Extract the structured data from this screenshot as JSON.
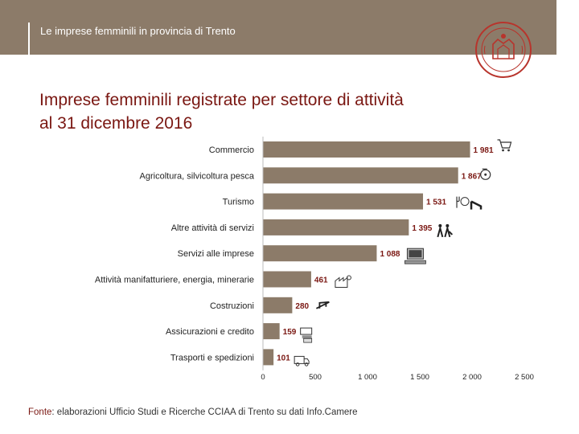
{
  "header": {
    "title": "Le imprese femminili in provincia di Trento",
    "band_color": "#8c7b69"
  },
  "logo": {
    "name": "chamber-of-commerce-seal",
    "color": "#b8342c"
  },
  "slide": {
    "title": "Imprese femminili registrate per settore di attività al 31 dicembre 2016",
    "title_color": "#7a1712"
  },
  "chart_data": {
    "type": "bar",
    "orientation": "horizontal",
    "title": "Imprese femminili registrate per settore di attività al 31 dicembre 2016",
    "categories": [
      "Commercio",
      "Agricoltura, silvicoltura pesca",
      "Turismo",
      "Altre attività di servizi",
      "Servizi alle imprese",
      "Attività manifatturiere, energia, minerarie",
      "Costruzioni",
      "Assicurazioni e credito",
      "Trasporti e spedizioni"
    ],
    "values": [
      1981,
      1867,
      1531,
      1395,
      1088,
      461,
      280,
      159,
      101
    ],
    "value_labels": [
      "1 981",
      "1 867",
      "1 531",
      "1 395",
      "1 088",
      "461",
      "280",
      "159",
      "101"
    ],
    "icons": [
      "shopping-cart-icon",
      "tractor-icon",
      "restaurant-bed-icon",
      "people-services-icon",
      "computer-icon",
      "factory-icon",
      "construction-crane-icon",
      "bank-cash-icon",
      "truck-icon"
    ],
    "xlim": [
      0,
      2500
    ],
    "xticks": [
      0,
      500,
      1000,
      1500,
      2000,
      2500
    ],
    "xtick_labels": [
      "0",
      "500",
      "1 000",
      "1 500",
      "2 000",
      "2 500"
    ],
    "bar_color": "#8c7b69",
    "label_color": "#7a1712",
    "grid": false,
    "legend": "none"
  },
  "footer": {
    "source_label": "Fonte",
    "source_text": ": elaborazioni Ufficio Studi e Ricerche CCIAA di Trento su dati Info.Camere"
  }
}
